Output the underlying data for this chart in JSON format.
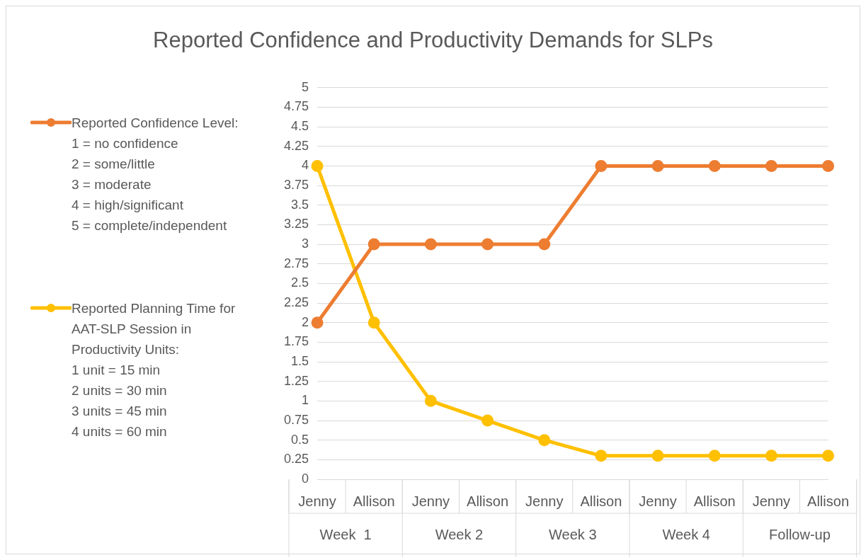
{
  "chart_data": {
    "type": "line",
    "title": "Reported Confidence and Productivity Demands for SLPs",
    "categories": [
      "Jenny",
      "Allison",
      "Jenny",
      "Allison",
      "Jenny",
      "Allison",
      "Jenny",
      "Allison",
      "Jenny",
      "Allison"
    ],
    "annotations": [
      "Week  1",
      "Week 2",
      "Week 3",
      "Week 4",
      "Follow-up"
    ],
    "series": [
      {
        "name": "Reported Confidence Level:\n1 = no confidence\n2 = some/little\n3 = moderate\n4 = high/significant\n5 = complete/independent",
        "color": "#ed7d31",
        "values": [
          2,
          3,
          3,
          3,
          3,
          4,
          4,
          4,
          4,
          4
        ]
      },
      {
        "name": "Reported Planning Time for\nAAT-SLP Session in\nProductivity Units:\n1 unit = 15 min\n2 units = 30 min\n3 units = 45 min\n4 units = 60 min",
        "color": "#ffc000",
        "values": [
          4,
          2,
          1,
          0.75,
          0.5,
          0.3,
          0.3,
          0.3,
          0.3,
          0.3
        ]
      }
    ],
    "ylim": [
      0,
      5
    ],
    "yticks": [
      0,
      0.25,
      0.5,
      0.75,
      1,
      1.25,
      1.5,
      1.75,
      2,
      2.25,
      2.5,
      2.75,
      3,
      3.25,
      3.5,
      3.75,
      4,
      4.25,
      4.5,
      4.75,
      5
    ],
    "grid": "y",
    "legend": "left",
    "marker": "circle",
    "line_style": "solid"
  }
}
